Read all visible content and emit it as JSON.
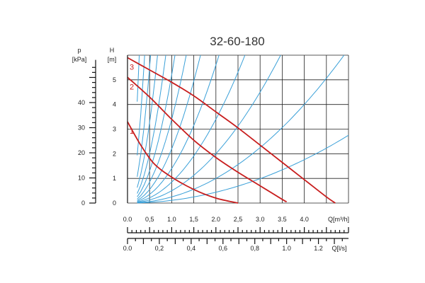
{
  "chart_data": {
    "type": "line",
    "title": "32-60-180",
    "ylabel_h": "H",
    "ylabel_h_unit": "[m]",
    "ylabel_p": "p",
    "ylabel_p_unit": "[kPa]",
    "xlabel_q": "Q[m³/h]",
    "xlabel_ls": "Q[l/s]",
    "xlim": [
      0,
      5.0
    ],
    "ylim": [
      0,
      6
    ],
    "h_ticks": [
      "0",
      "1",
      "2",
      "3",
      "4",
      "5"
    ],
    "p_ticks": [
      "0",
      "10",
      "20",
      "30",
      "40"
    ],
    "q_ticks": [
      "0.0",
      "0,5",
      "1.0",
      "1,5",
      "2.0",
      "2,5",
      "3.0",
      "3.5",
      "4.0"
    ],
    "ls_ticks": [
      "0.0",
      "0,2",
      "0,4",
      "0,6",
      "0,8",
      "1.0",
      "1.2"
    ],
    "series": [
      {
        "name": "1",
        "x": [
          0.0,
          0.3,
          0.6,
          1.0,
          1.5,
          2.0,
          2.5
        ],
        "y": [
          3.3,
          2.35,
          1.6,
          1.05,
          0.55,
          0.2,
          0.0
        ]
      },
      {
        "name": "2",
        "x": [
          0.0,
          0.5,
          1.0,
          1.5,
          2.0,
          2.5,
          3.0,
          3.5,
          3.6
        ],
        "y": [
          5.1,
          4.3,
          3.4,
          2.55,
          1.85,
          1.25,
          0.7,
          0.15,
          0.05
        ]
      },
      {
        "name": "3",
        "x": [
          0.0,
          0.5,
          1.0,
          1.5,
          2.0,
          2.5,
          3.0,
          3.5,
          4.0,
          4.5,
          4.7
        ],
        "y": [
          5.9,
          5.4,
          4.9,
          4.35,
          3.7,
          3.05,
          2.35,
          1.65,
          0.95,
          0.25,
          0.0
        ]
      }
    ],
    "system_curves_k": [
      85,
      40,
      22,
      13,
      8,
      5.2,
      3.4,
      2.2,
      1.4,
      0.85,
      0.5,
      0.25,
      0.11
    ],
    "grid": true,
    "colors": {
      "pump_curve": "#c81e1e",
      "system_curve": "#3aa0d8",
      "grid": "#222222"
    }
  }
}
